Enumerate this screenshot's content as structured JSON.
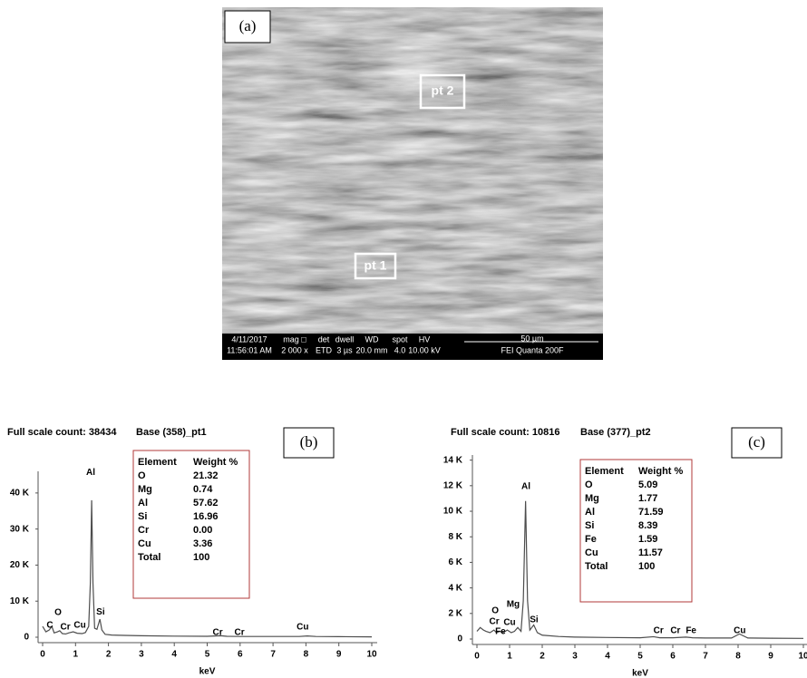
{
  "image": {
    "panel_label": "(a)",
    "point_labels": [
      "pt 2",
      "pt 1"
    ],
    "info_bar": [
      [
        "4/11/2017",
        "11:56:01 AM"
      ],
      [
        "mag □",
        "2 000 x"
      ],
      [
        "det",
        "ETD"
      ],
      [
        "dwell",
        "3 µs"
      ],
      [
        "WD",
        "20.0 mm"
      ],
      [
        "spot",
        "4.0"
      ],
      [
        "HV",
        "10.00 kV"
      ],
      [
        "50 µm",
        "FEI Quanta 200F"
      ]
    ]
  },
  "chart_data": [
    {
      "type": "line",
      "title": "Full scale count: 38434",
      "subtitle": "Base (358)_pt1",
      "panel_label": "(b)",
      "x_label": "keV",
      "color": "#4d4d4d",
      "x": [
        0,
        0.1,
        0.2,
        0.28,
        0.35,
        0.45,
        0.52,
        0.6,
        0.7,
        0.8,
        0.93,
        1.05,
        1.2,
        1.3,
        1.4,
        1.45,
        1.49,
        1.53,
        1.58,
        1.65,
        1.74,
        1.8,
        1.9,
        2.1,
        2.5,
        3,
        4,
        5,
        5.41,
        5.6,
        6,
        7,
        7.8,
        8.04,
        8.3,
        9,
        10
      ],
      "values": [
        3000,
        1500,
        2000,
        3000,
        1200,
        1500,
        1800,
        1000,
        900,
        1200,
        1500,
        1100,
        1000,
        1300,
        3000,
        15000,
        38000,
        15000,
        2500,
        2200,
        5000,
        2000,
        800,
        600,
        500,
        400,
        300,
        250,
        400,
        250,
        200,
        200,
        200,
        350,
        200,
        150,
        100
      ],
      "xlim": [
        0,
        10
      ],
      "xticks": [
        0,
        1,
        2,
        3,
        4,
        5,
        6,
        7,
        8,
        9,
        10
      ],
      "ylim": [
        0,
        46000
      ],
      "yticks": [
        0,
        {
          "value": 10000,
          "label": "10 K"
        },
        {
          "value": 20000,
          "label": "20 K"
        },
        {
          "value": 30000,
          "label": "30 K"
        },
        {
          "value": 40000,
          "label": "40 K"
        }
      ],
      "peak_labels": [
        {
          "text": "C",
          "x": 0.22,
          "y": 3300
        },
        {
          "text": "O",
          "x": 0.47,
          "y": 6800
        },
        {
          "text": "Cr",
          "x": 0.69,
          "y": 2800
        },
        {
          "text": "Cu",
          "x": 1.13,
          "y": 3300
        },
        {
          "text": "Al",
          "x": 1.46,
          "y": 45600
        },
        {
          "text": "Si",
          "x": 1.76,
          "y": 7000
        },
        {
          "text": "Cr",
          "x": 5.32,
          "y": 1300
        },
        {
          "text": "Cr",
          "x": 5.98,
          "y": 1300
        },
        {
          "text": "Cu",
          "x": 7.9,
          "y": 2800
        }
      ],
      "table": {
        "header": [
          "Element",
          "Weight %"
        ],
        "rows": [
          [
            "O",
            "21.32"
          ],
          [
            "Mg",
            "0.74"
          ],
          [
            "Al",
            "57.62"
          ],
          [
            "Si",
            "16.96"
          ],
          [
            "Cr",
            "0.00"
          ],
          [
            "Cu",
            "3.36"
          ],
          [
            "Total",
            "100"
          ]
        ]
      }
    },
    {
      "type": "line",
      "title": "Full scale count: 10816",
      "subtitle": "Base (377)_pt2",
      "panel_label": "(c)",
      "x_label": "keV",
      "color": "#4d4d4d",
      "x": [
        0,
        0.1,
        0.2,
        0.28,
        0.4,
        0.52,
        0.6,
        0.7,
        0.8,
        0.93,
        1.05,
        1.15,
        1.25,
        1.35,
        1.42,
        1.49,
        1.55,
        1.62,
        1.74,
        1.85,
        2,
        2.5,
        3,
        4,
        5,
        5.41,
        5.6,
        6,
        6.4,
        6.6,
        7,
        7.8,
        8.04,
        8.3,
        9,
        10
      ],
      "values": [
        600,
        900,
        700,
        600,
        500,
        700,
        500,
        600,
        500,
        700,
        500,
        600,
        900,
        600,
        3000,
        10800,
        3000,
        700,
        1100,
        500,
        300,
        200,
        150,
        120,
        100,
        180,
        100,
        100,
        150,
        100,
        80,
        80,
        400,
        80,
        60,
        50
      ],
      "xlim": [
        0,
        10
      ],
      "xticks": [
        0,
        1,
        2,
        3,
        4,
        5,
        6,
        7,
        8,
        9,
        10
      ],
      "ylim": [
        0,
        14400
      ],
      "yticks": [
        0,
        {
          "value": 2000,
          "label": "2 K"
        },
        {
          "value": 4000,
          "label": "4 K"
        },
        {
          "value": 6000,
          "label": "6 K"
        },
        {
          "value": 8000,
          "label": "8 K"
        },
        {
          "value": 10000,
          "label": "10 K"
        },
        {
          "value": 12000,
          "label": "12 K"
        },
        {
          "value": 14000,
          "label": "14 K"
        }
      ],
      "peak_labels": [
        {
          "text": "Al",
          "x": 1.5,
          "y": 11940
        },
        {
          "text": "O",
          "x": 0.56,
          "y": 2200
        },
        {
          "text": "Mg",
          "x": 1.11,
          "y": 2700
        },
        {
          "text": "Cr",
          "x": 0.53,
          "y": 1350
        },
        {
          "text": "Cu",
          "x": 1.0,
          "y": 1280
        },
        {
          "text": "Fe",
          "x": 0.72,
          "y": 570
        },
        {
          "text": "Si",
          "x": 1.75,
          "y": 1500
        },
        {
          "text": "Cr",
          "x": 5.56,
          "y": 640
        },
        {
          "text": "Cr",
          "x": 6.08,
          "y": 640
        },
        {
          "text": "Fe",
          "x": 6.56,
          "y": 640
        },
        {
          "text": "Cu",
          "x": 8.05,
          "y": 640
        }
      ],
      "table": {
        "header": [
          "Element",
          "Weight %"
        ],
        "rows": [
          [
            "O",
            "5.09"
          ],
          [
            "Mg",
            "1.77"
          ],
          [
            "Al",
            "71.59"
          ],
          [
            "Si",
            "8.39"
          ],
          [
            "Fe",
            "1.59"
          ],
          [
            "Cu",
            "11.57"
          ],
          [
            "Total",
            "100"
          ]
        ]
      }
    }
  ]
}
